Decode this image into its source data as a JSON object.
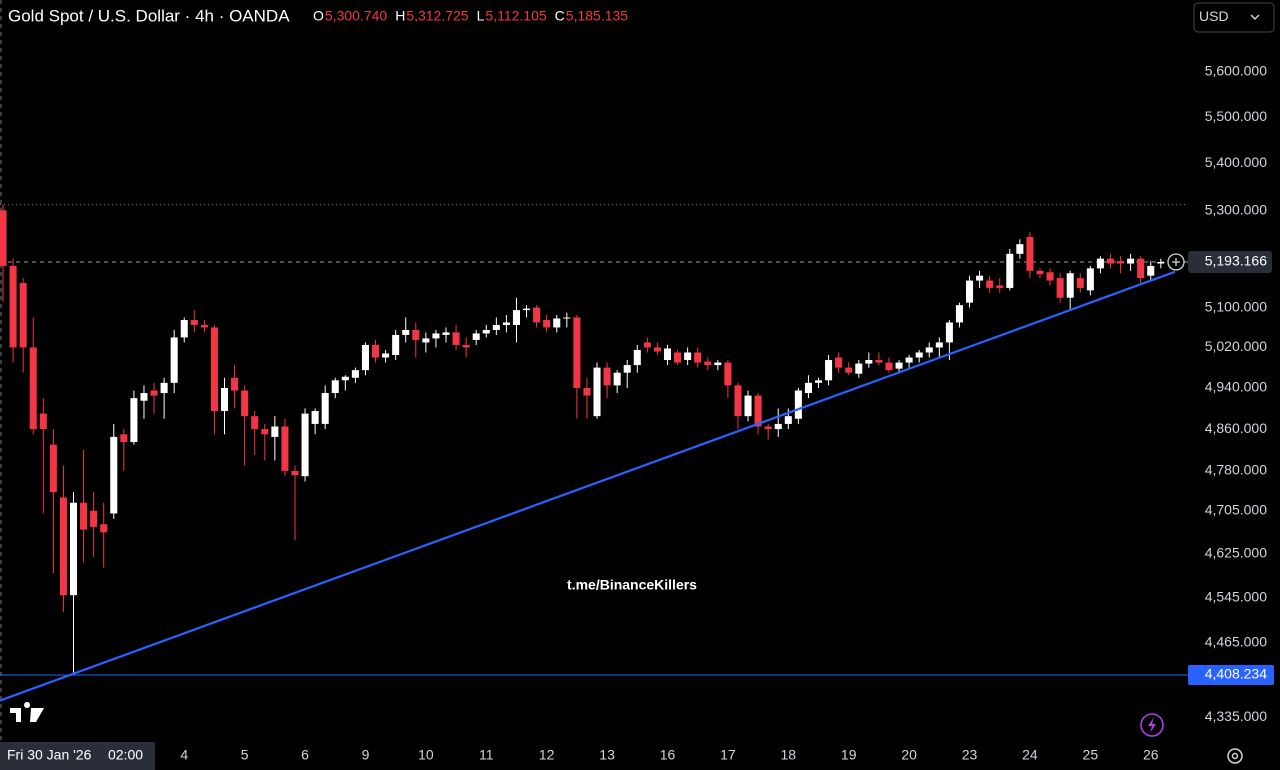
{
  "chart_data": {
    "type": "candlestick",
    "title": "Gold Spot / U.S. Dollar · 4h · OANDA",
    "ohlc": [
      {
        "key": "O",
        "value": 5300.74,
        "label": "5,300.740"
      },
      {
        "key": "H",
        "value": 5312.725,
        "label": "5,312.725"
      },
      {
        "key": "L",
        "value": 5112.105,
        "label": "5,112.105"
      },
      {
        "key": "C",
        "value": 5185.135,
        "label": "5,185.135"
      }
    ],
    "currency": "USD",
    "watermark": "t.me/BinanceKillers",
    "crosshair_date": "Fri 30 Jan '26",
    "crosshair_time": "02:00",
    "log_scale": true,
    "grid": false,
    "up_color": "#ffffff",
    "down_color": "#f23645",
    "open": [
      5300.74,
      5185,
      5150,
      5020,
      4890,
      4830,
      4730,
      4550,
      4720,
      4705,
      4680,
      4700,
      4850,
      4835,
      4915,
      4935,
      4930,
      4950,
      5040,
      5075,
      5065,
      5060,
      4895,
      4960,
      4935,
      4885,
      4860,
      4845,
      4865,
      4780,
      4770,
      4870,
      4870,
      4930,
      4955,
      4960,
      4975,
      5025,
      5000,
      5005,
      5045,
      5055,
      5030,
      5038,
      5045,
      5050,
      5025,
      5035,
      5048,
      5055,
      5065,
      5065,
      5095,
      5100,
      5075,
      5060,
      5078,
      5080,
      4940,
      4885,
      4980,
      4945,
      4970,
      4985,
      5030,
      5020,
      4995,
      5010,
      4995,
      5010,
      4992,
      4985,
      4990,
      4945,
      4885,
      4925,
      4865,
      4860,
      4870,
      4880,
      4930,
      4950,
      4955,
      5000,
      4980,
      4968,
      4988,
      4995,
      4990,
      4978,
      4990,
      5000,
      5010,
      5020,
      5030,
      5070,
      5110,
      5155,
      5155,
      5145,
      5140,
      5210,
      5245,
      5175,
      5172,
      5160,
      5120,
      5160,
      5135,
      5180,
      5200,
      5195,
      5190,
      5200,
      5165,
      5190
    ],
    "high": [
      5312.725,
      5200,
      5160,
      5080,
      4920,
      4860,
      4790,
      4740,
      4820,
      4740,
      4720,
      4870,
      4860,
      4935,
      4945,
      4950,
      4960,
      5055,
      5080,
      5095,
      5075,
      5065,
      4960,
      4985,
      4945,
      4895,
      4870,
      4885,
      4880,
      4790,
      4900,
      4900,
      4945,
      4960,
      4965,
      4980,
      5030,
      5035,
      5015,
      5055,
      5080,
      5070,
      5050,
      5055,
      5060,
      5065,
      5040,
      5055,
      5065,
      5080,
      5085,
      5120,
      5105,
      5105,
      5085,
      5085,
      5090,
      5085,
      4960,
      4990,
      4990,
      4975,
      4995,
      5025,
      5040,
      5030,
      5025,
      5015,
      5020,
      5020,
      5000,
      4995,
      4995,
      4950,
      4935,
      4930,
      4870,
      4900,
      4900,
      4940,
      4965,
      4960,
      5005,
      5010,
      4990,
      4995,
      5010,
      5010,
      5000,
      4995,
      5005,
      5015,
      5030,
      5040,
      5075,
      5110,
      5165,
      5175,
      5165,
      5160,
      5220,
      5240,
      5255,
      5180,
      5180,
      5170,
      5175,
      5170,
      5185,
      5205,
      5210,
      5205,
      5210,
      5205,
      5195,
      5200
    ],
    "low": [
      5112.105,
      4990,
      4970,
      4850,
      4700,
      4590,
      4520,
      4408.234,
      4610,
      4620,
      4600,
      4690,
      4780,
      4830,
      4880,
      4890,
      4880,
      4930,
      5030,
      5050,
      5050,
      4850,
      4850,
      4900,
      4790,
      4810,
      4800,
      4800,
      4770,
      4650,
      4760,
      4850,
      4860,
      4920,
      4935,
      4950,
      4965,
      4990,
      4990,
      4995,
      5030,
      5000,
      5010,
      5020,
      5030,
      5015,
      5000,
      5025,
      5040,
      5045,
      5050,
      5030,
      5080,
      5060,
      5050,
      5050,
      5060,
      4880,
      4880,
      4880,
      4920,
      4930,
      4940,
      4970,
      5010,
      5005,
      4985,
      4985,
      4985,
      4980,
      4975,
      4975,
      4920,
      4860,
      4875,
      4850,
      4840,
      4845,
      4860,
      4870,
      4920,
      4940,
      4945,
      4970,
      4965,
      4960,
      4980,
      4985,
      4970,
      4970,
      4980,
      4990,
      5000,
      5000,
      4995,
      5060,
      5100,
      5140,
      5130,
      5130,
      5135,
      5200,
      5160,
      5160,
      5145,
      5110,
      5095,
      5130,
      5125,
      5170,
      5180,
      5170,
      5175,
      5150,
      5155,
      5180
    ],
    "close": [
      5185.135,
      5020,
      5020,
      4860,
      4860,
      4740,
      4550,
      4720,
      4670,
      4675,
      4665,
      4845,
      4835,
      4920,
      4930,
      4925,
      4950,
      5040,
      5075,
      5065,
      5060,
      4895,
      4940,
      4935,
      4885,
      4860,
      4850,
      4865,
      4780,
      4772,
      4890,
      4895,
      4930,
      4955,
      4962,
      4975,
      5025,
      5000,
      5008,
      5045,
      5055,
      5035,
      5038,
      5048,
      5050,
      5025,
      5020,
      5048,
      5055,
      5065,
      5070,
      5095,
      5098,
      5070,
      5060,
      5078,
      5080,
      4940,
      4925,
      4980,
      4945,
      4970,
      4985,
      5015,
      5020,
      5012,
      5018,
      4990,
      5010,
      4990,
      4985,
      4990,
      4945,
      4885,
      4925,
      4865,
      4860,
      4870,
      4885,
      4935,
      4950,
      4955,
      4995,
      4980,
      4970,
      4988,
      4995,
      4990,
      4975,
      4990,
      5000,
      5010,
      5020,
      5030,
      5070,
      5105,
      5155,
      5165,
      5140,
      5140,
      5210,
      5230,
      5175,
      5168,
      5155,
      5120,
      5170,
      5140,
      5180,
      5200,
      5190,
      5190,
      5200,
      5160,
      5185,
      5193.166
    ],
    "xlim": [
      -0.3,
      117.7
    ],
    "xticks": [
      {
        "value": 18,
        "label": "4"
      },
      {
        "value": 24,
        "label": "5"
      },
      {
        "value": 30,
        "label": "6"
      },
      {
        "value": 36,
        "label": "9"
      },
      {
        "value": 42,
        "label": "10"
      },
      {
        "value": 48,
        "label": "11"
      },
      {
        "value": 54,
        "label": "12"
      },
      {
        "value": 60,
        "label": "13"
      },
      {
        "value": 66,
        "label": "16"
      },
      {
        "value": 72,
        "label": "17"
      },
      {
        "value": 78,
        "label": "18"
      },
      {
        "value": 84,
        "label": "19"
      },
      {
        "value": 90,
        "label": "20"
      },
      {
        "value": 96,
        "label": "23"
      },
      {
        "value": 102,
        "label": "24"
      },
      {
        "value": 108,
        "label": "25"
      },
      {
        "value": 114,
        "label": "26"
      }
    ],
    "ylim": [
      4296,
      5762
    ],
    "yticks": [
      {
        "value": 5600,
        "label": "5,600.000"
      },
      {
        "value": 5500,
        "label": "5,500.000"
      },
      {
        "value": 5400,
        "label": "5,400.000"
      },
      {
        "value": 5300,
        "label": "5,300.000"
      },
      {
        "value": 5100,
        "label": "5,100.000"
      },
      {
        "value": 5020,
        "label": "5,020.000"
      },
      {
        "value": 4940,
        "label": "4,940.000"
      },
      {
        "value": 4860,
        "label": "4,860.000"
      },
      {
        "value": 4780,
        "label": "4,780.000"
      },
      {
        "value": 4705,
        "label": "4,705.000"
      },
      {
        "value": 4625,
        "label": "4,625.000"
      },
      {
        "value": 4545,
        "label": "4,545.000"
      },
      {
        "value": 4465,
        "label": "4,465.000"
      },
      {
        "value": 4335,
        "label": "4,335.000"
      }
    ],
    "current_price": {
      "value": 5193.166,
      "label": "5,193.166"
    },
    "level": {
      "value": 4408.234,
      "label": "4,408.234",
      "color": "#2962ff"
    },
    "trendline": {
      "x": [
        6.65,
        116.4
      ],
      "y": [
        4408.234,
        5173
      ],
      "color": "#2962ff"
    }
  }
}
